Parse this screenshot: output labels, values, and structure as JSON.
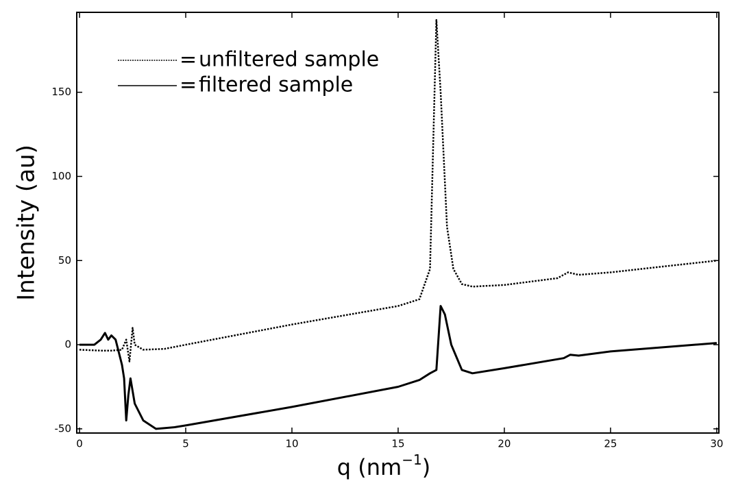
{
  "chart_data": {
    "type": "line",
    "y_label": "Intensity (au)",
    "x_label": {
      "text": "q (nm",
      "superscript": "−1",
      "suffix": ")"
    },
    "legend_prefix": "=",
    "xlim": [
      -0.13,
      30.1
    ],
    "xticks": [
      0,
      5,
      10,
      15,
      20,
      25,
      30
    ],
    "ylim": [
      -52.5,
      197.5
    ],
    "yticks": [
      -50,
      0,
      50,
      100,
      150
    ],
    "grid": false,
    "legend": "upper left",
    "series": [
      {
        "name": "unfiltered sample",
        "color": "#000000",
        "dash": "dotted",
        "x": [
          0,
          1,
          1.5,
          2.0,
          2.2,
          2.35,
          2.5,
          2.6,
          3,
          4,
          5,
          10,
          15,
          16,
          16.5,
          16.8,
          17.0,
          17.3,
          17.6,
          18,
          18.5,
          20,
          22.5,
          23,
          23.5,
          25,
          30
        ],
        "values": [
          -3,
          -3.5,
          -3.5,
          -3,
          3,
          -10,
          10,
          0,
          -3,
          -2.5,
          0,
          12,
          23,
          27,
          45,
          193,
          150,
          70,
          45,
          36,
          34.5,
          35.5,
          39.5,
          43,
          41.5,
          43,
          50
        ]
      },
      {
        "name": "filtered sample",
        "color": "#000000",
        "dash": "solid",
        "x": [
          0,
          0.7,
          1.0,
          1.2,
          1.35,
          1.5,
          1.7,
          2.0,
          2.1,
          2.2,
          2.3,
          2.4,
          2.6,
          3.0,
          3.6,
          4.5,
          5,
          10,
          15,
          16,
          16.5,
          16.8,
          17.0,
          17.2,
          17.5,
          18,
          18.5,
          20,
          22.8,
          23.1,
          23.5,
          25,
          30
        ],
        "values": [
          0,
          0,
          3,
          7,
          3,
          5.5,
          3,
          -12,
          -20,
          -45,
          -30,
          -20,
          -35,
          -45,
          -50,
          -49,
          -48,
          -37,
          -25,
          -21,
          -17,
          -15,
          23,
          18,
          0,
          -15,
          -17,
          -14,
          -8,
          -6,
          -6.5,
          -4,
          1
        ]
      }
    ]
  }
}
